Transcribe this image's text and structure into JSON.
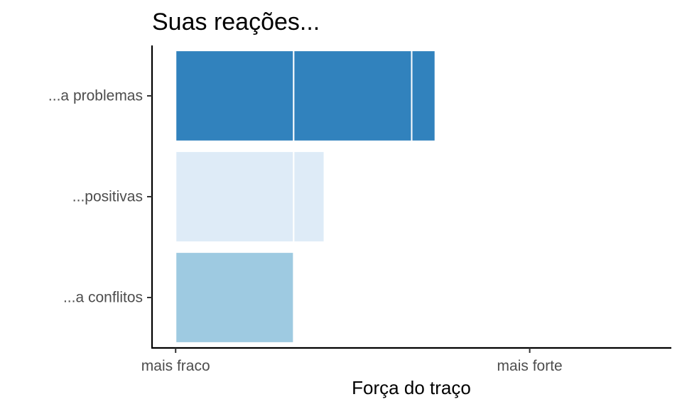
{
  "chart_data": {
    "type": "bar",
    "orientation": "horizontal",
    "stacked": true,
    "title": "Suas reações...",
    "xlabel": "Força do traço",
    "ylabel": "",
    "categories": [
      "...a problemas",
      "...positivas",
      "...a conflitos"
    ],
    "segments": [
      [
        1,
        1,
        0.2
      ],
      [
        1,
        0.26
      ],
      [
        1
      ]
    ],
    "colors": [
      "#3182bd",
      "#deebf7",
      "#9ecae1"
    ],
    "segment_divider_color": "#ffffff",
    "x_ticks": [
      {
        "value": 0,
        "label": "mais fraco"
      },
      {
        "value": 3,
        "label": "mais forte"
      }
    ],
    "xlim": [
      -0.2,
      4.2
    ],
    "grid": false,
    "legend": "none"
  }
}
